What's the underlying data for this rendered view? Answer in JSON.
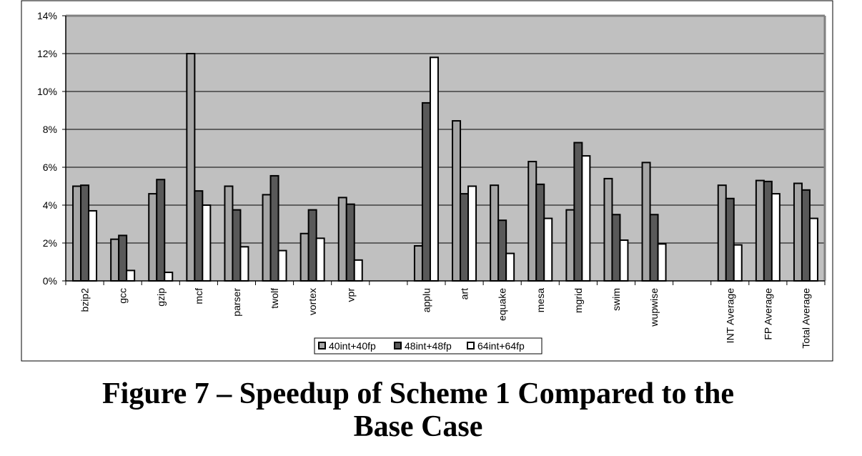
{
  "caption": {
    "line1": "Figure 7 – Speedup of Scheme 1 Compared to the",
    "line2": "Base Case"
  },
  "chart_data": {
    "type": "bar",
    "title": "",
    "xlabel": "",
    "ylabel": "",
    "ylim": [
      0,
      14
    ],
    "yticks": [
      "0%",
      "2%",
      "4%",
      "6%",
      "8%",
      "10%",
      "12%",
      "14%"
    ],
    "grid": true,
    "legend_position": "bottom-center",
    "categories": [
      "bzip2",
      "gcc",
      "gzip",
      "mcf",
      "parser",
      "twolf",
      "vortex",
      "vpr",
      "",
      "applu",
      "art",
      "equake",
      "mesa",
      "mgrid",
      "swim",
      "wupwise",
      "",
      "INT Average",
      "FP Average",
      "Total Average"
    ],
    "series": [
      {
        "name": "40int+40fp",
        "color": "#a6a6a6",
        "values": [
          5.0,
          2.2,
          4.6,
          12.0,
          5.0,
          4.55,
          2.5,
          4.4,
          null,
          1.85,
          8.45,
          5.05,
          6.3,
          3.75,
          5.4,
          6.25,
          null,
          5.05,
          5.3,
          5.15
        ]
      },
      {
        "name": "48int+48fp",
        "color": "#595959",
        "values": [
          5.05,
          2.4,
          5.35,
          4.75,
          3.75,
          5.55,
          3.75,
          4.05,
          null,
          9.4,
          4.6,
          3.2,
          5.1,
          7.3,
          3.5,
          3.5,
          null,
          4.35,
          5.25,
          4.8
        ]
      },
      {
        "name": "64int+64fp",
        "color": "#ffffff",
        "values": [
          3.7,
          0.55,
          0.45,
          4.0,
          1.8,
          1.6,
          2.25,
          1.1,
          null,
          11.8,
          5.0,
          1.45,
          3.3,
          6.6,
          2.15,
          1.95,
          null,
          1.9,
          4.6,
          3.3
        ]
      }
    ]
  }
}
